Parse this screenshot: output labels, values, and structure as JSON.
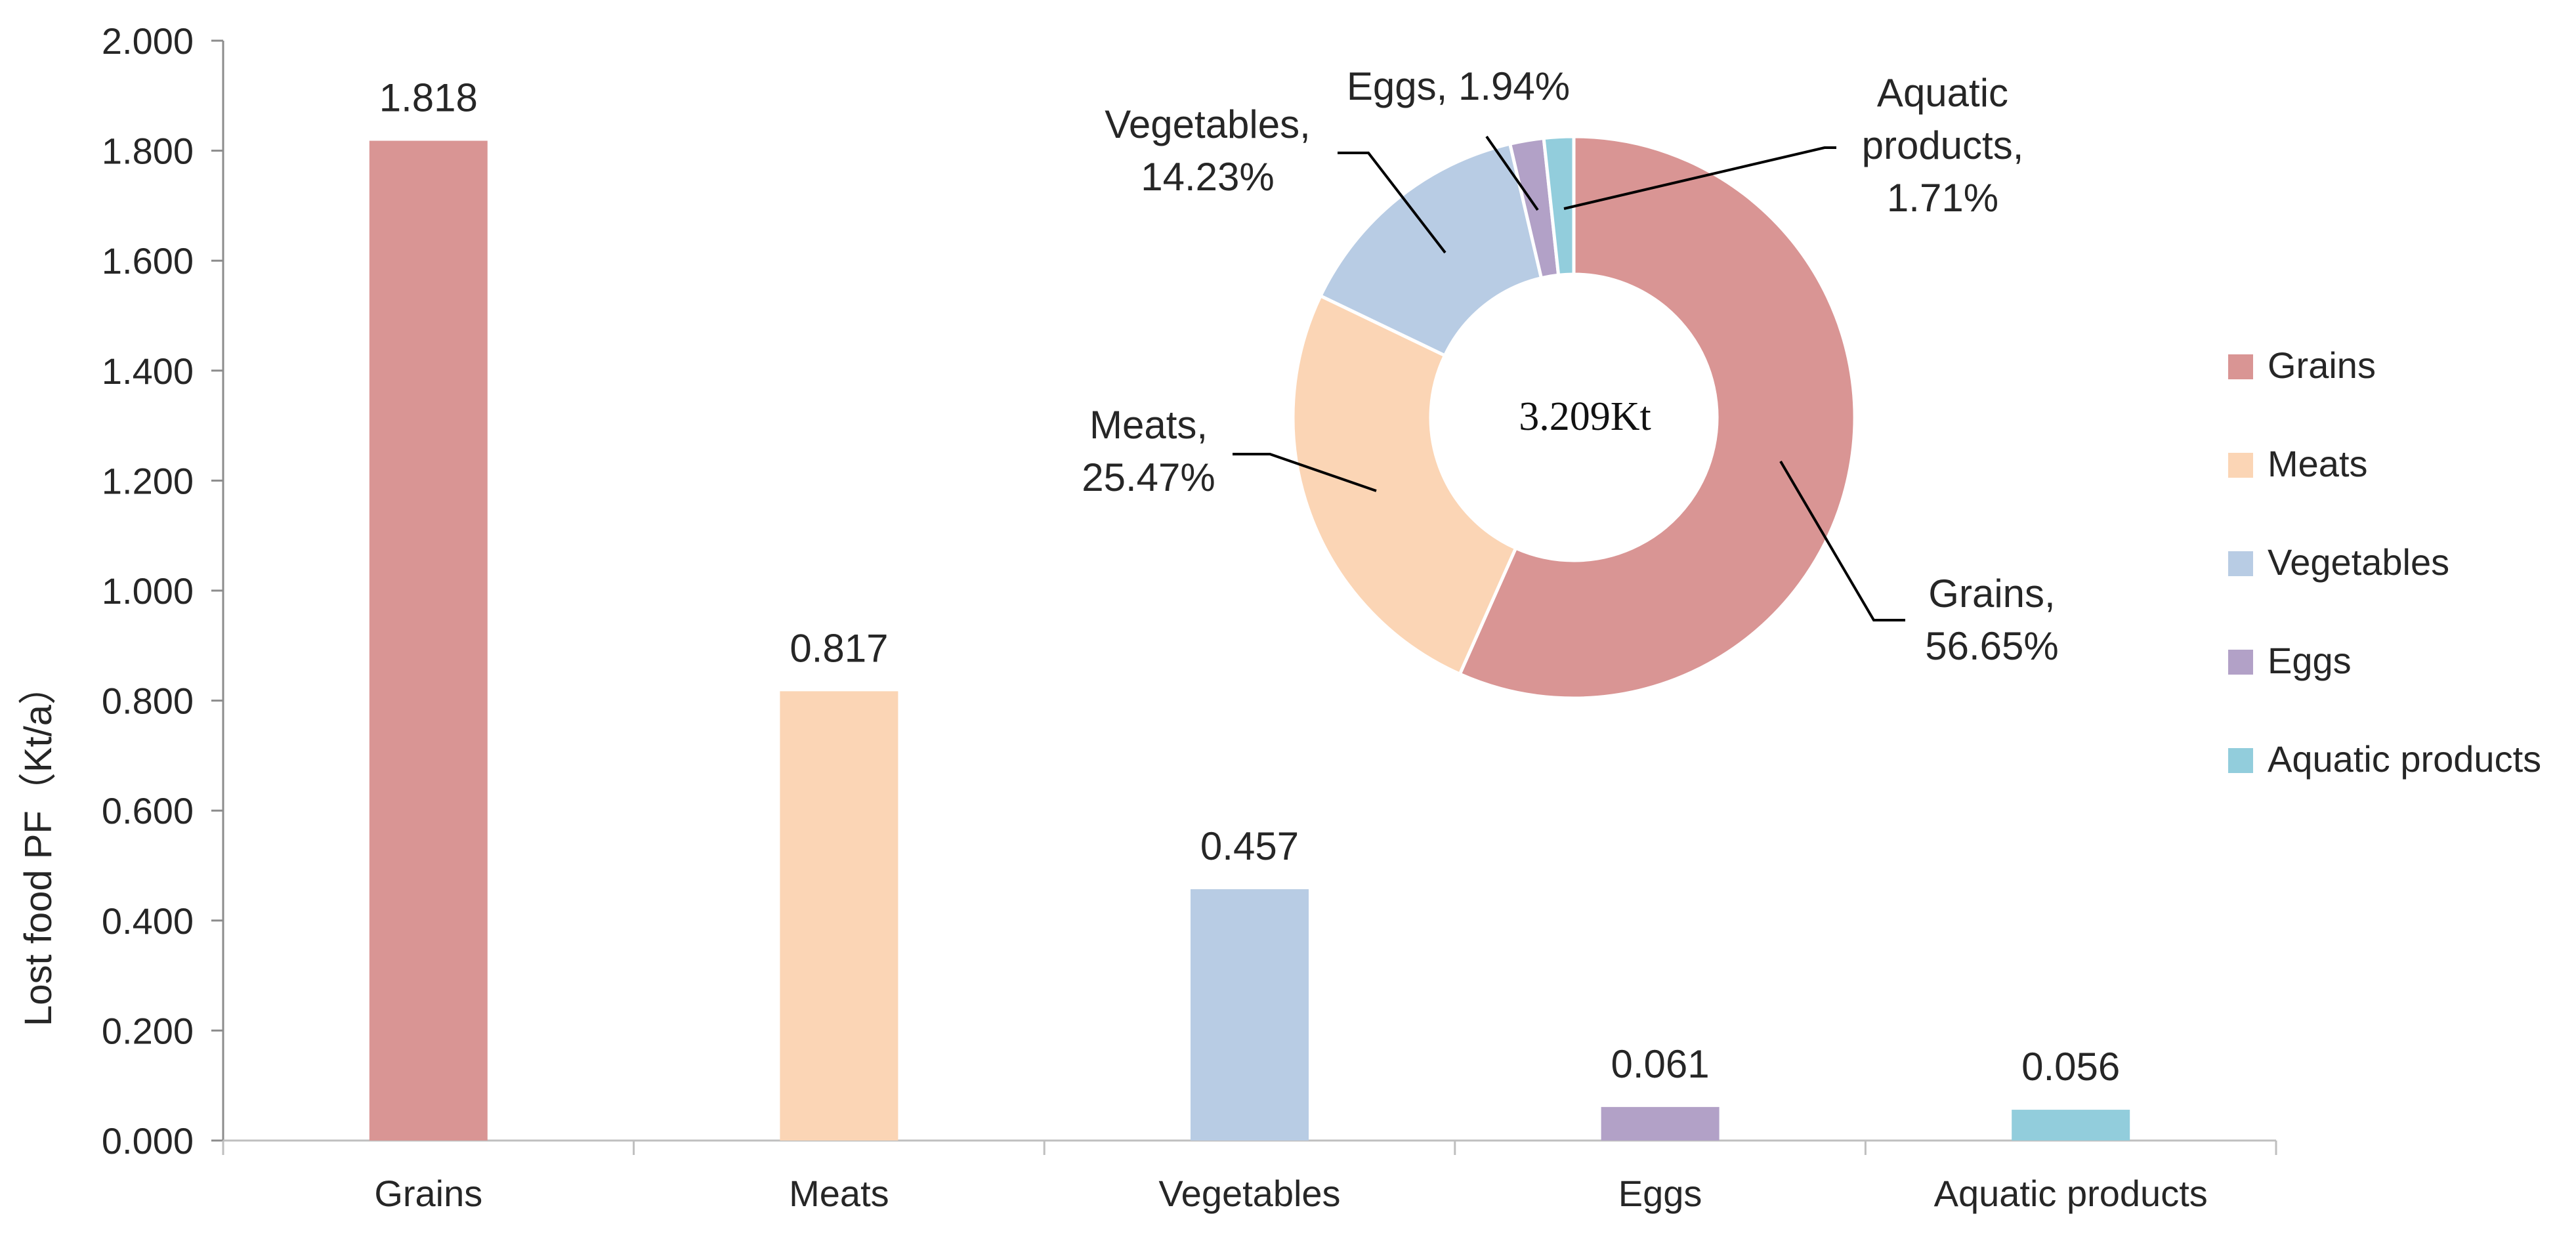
{
  "chart_data": [
    {
      "type": "bar",
      "ylabel": "Lost food PF（Kt/a）",
      "xlabel": "",
      "ylim": [
        0,
        2.0
      ],
      "y_ticks": [
        "0.000",
        "0.200",
        "0.400",
        "0.600",
        "0.800",
        "1.000",
        "1.200",
        "1.400",
        "1.600",
        "1.800",
        "2.000"
      ],
      "categories": [
        "Grains",
        "Meats",
        "Vegetables",
        "Eggs",
        "Aquatic products"
      ],
      "values": [
        1.818,
        0.817,
        0.457,
        0.061,
        0.056
      ],
      "value_labels": [
        "1.818",
        "0.817",
        "0.457",
        "0.061",
        "0.056"
      ],
      "colors": [
        "#d99594",
        "#fbd5b5",
        "#b8cce4",
        "#b2a1c7",
        "#92cddc"
      ],
      "grid": false
    },
    {
      "type": "pie",
      "style": "donut",
      "center_label": "3.209Kt",
      "labels": [
        "Grains",
        "Meats",
        "Vegetables",
        "Eggs",
        "Aquatic products"
      ],
      "values": [
        56.65,
        25.47,
        14.23,
        1.94,
        1.71
      ],
      "slice_labels": [
        [
          "Grains,",
          "56.65%"
        ],
        [
          "Meats,",
          "25.47%"
        ],
        [
          "Vegetables,",
          "14.23%"
        ],
        [
          "Eggs, 1.94%"
        ],
        [
          "Aquatic",
          "products,",
          "1.71%"
        ]
      ],
      "colors": [
        "#d99594",
        "#fbd5b5",
        "#b8cce4",
        "#b2a1c7",
        "#92cddc"
      ]
    }
  ],
  "legend": {
    "placement": "right",
    "items": [
      "Grains",
      "Meats",
      "Vegetables",
      "Eggs",
      "Aquatic products"
    ]
  }
}
